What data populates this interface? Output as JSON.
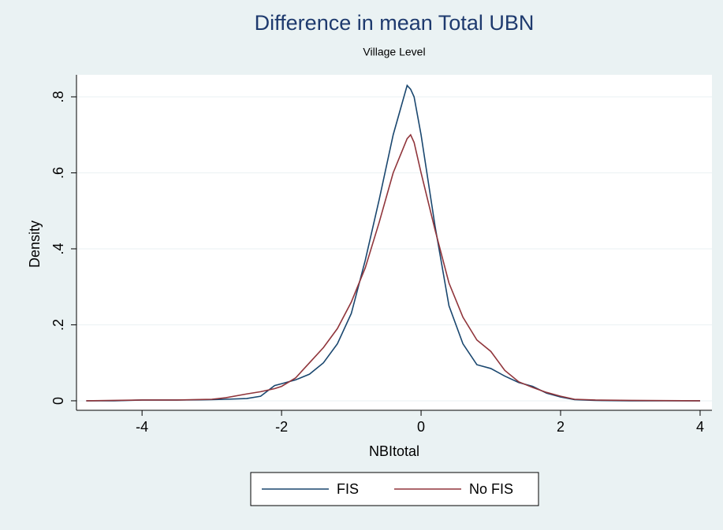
{
  "chart_data": {
    "type": "line",
    "title": "Difference in mean Total UBN",
    "subtitle": "Village Level",
    "x_label": "NBItotal",
    "y_label": "Density",
    "x": [
      -4.8,
      -4.4,
      -4,
      -3.5,
      -3,
      -2.8,
      -2.5,
      -2.3,
      -2.1,
      -2,
      -1.8,
      -1.6,
      -1.4,
      -1.2,
      -1,
      -0.8,
      -0.6,
      -0.4,
      -0.2,
      -0.15,
      -0.1,
      0,
      0.2,
      0.4,
      0.6,
      0.8,
      1,
      1.2,
      1.4,
      1.6,
      1.8,
      2,
      2.2,
      2.5,
      3,
      4
    ],
    "series": [
      {
        "name": "FIS",
        "color": "#1a476f",
        "values": [
          0,
          0,
          0.002,
          0.002,
          0.003,
          0.004,
          0.006,
          0.012,
          0.04,
          0.045,
          0.055,
          0.07,
          0.1,
          0.15,
          0.23,
          0.37,
          0.53,
          0.7,
          0.83,
          0.82,
          0.8,
          0.7,
          0.46,
          0.25,
          0.15,
          0.095,
          0.085,
          0.065,
          0.048,
          0.038,
          0.02,
          0.01,
          0.003,
          0.001,
          0,
          0
        ]
      },
      {
        "name": "No FIS",
        "color": "#90353b",
        "values": [
          0,
          0.001,
          0.002,
          0.002,
          0.004,
          0.008,
          0.018,
          0.024,
          0.032,
          0.038,
          0.06,
          0.1,
          0.14,
          0.19,
          0.26,
          0.35,
          0.47,
          0.6,
          0.69,
          0.7,
          0.68,
          0.6,
          0.45,
          0.31,
          0.22,
          0.16,
          0.13,
          0.08,
          0.05,
          0.035,
          0.022,
          0.012,
          0.004,
          0.002,
          0.001,
          0
        ]
      }
    ],
    "xlim": [
      -4.94,
      4.17
    ],
    "ylim": [
      -0.025,
      0.858
    ],
    "xticks": [
      -4,
      -2,
      0,
      2,
      4
    ],
    "yticks": [
      0,
      {
        "value": 0.2,
        "label": ".2"
      },
      {
        "value": 0.4,
        "label": ".4"
      },
      {
        "value": 0.6,
        "label": ".6"
      },
      {
        "value": 0.8,
        "label": ".8"
      }
    ],
    "grid": true,
    "legend": "bottom"
  }
}
